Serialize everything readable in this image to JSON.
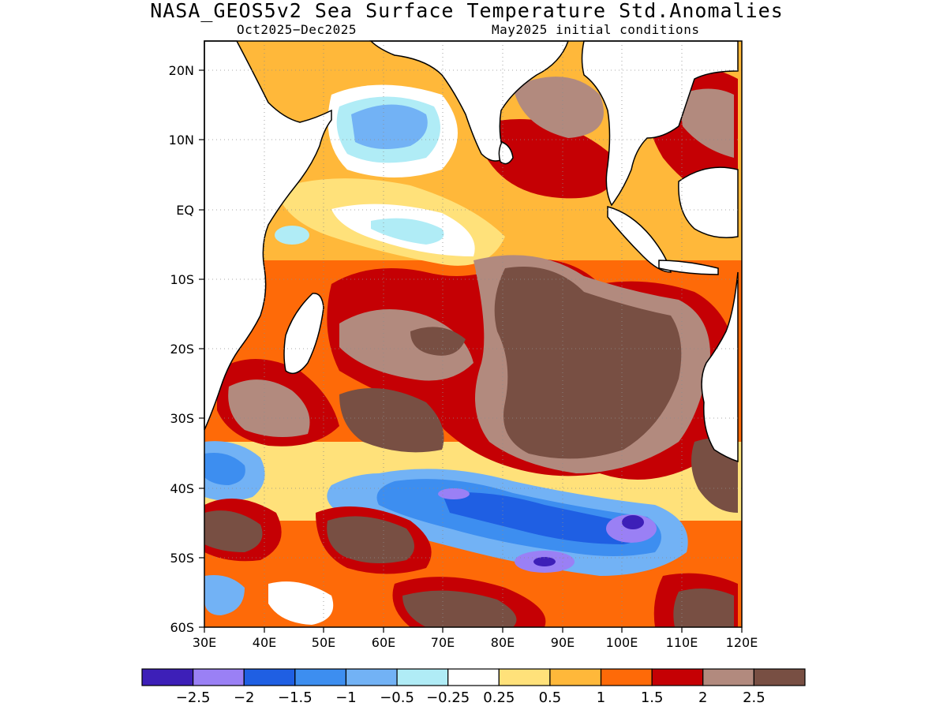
{
  "title": "NASA_GEOS5v2 Sea Surface Temperature Std.Anomalies",
  "subtitle_left": "Oct2025−Dec2025",
  "subtitle_right": "May2025 initial conditions",
  "map": {
    "lon_range": [
      30,
      120
    ],
    "lat_range": [
      -60,
      24
    ],
    "lon_ticks": [
      "30E",
      "40E",
      "50E",
      "60E",
      "70E",
      "80E",
      "90E",
      "100E",
      "110E",
      "120E"
    ],
    "lat_ticks": [
      "20N",
      "10N",
      "EQ",
      "10S",
      "20S",
      "30S",
      "40S",
      "50S",
      "60S"
    ],
    "grid": "dotted"
  },
  "colorbar": {
    "colors": [
      "#3d1fb8",
      "#9a80f5",
      "#1f5fe3",
      "#3d8ef0",
      "#72b2f5",
      "#b0ecf6",
      "#ffffff",
      "#ffe17a",
      "#ffb83a",
      "#fe6a08",
      "#c50004",
      "#b28a7e",
      "#784f43"
    ],
    "labels": [
      "−2.5",
      "−2",
      "−1.5",
      "−1",
      "−0.5",
      "−0.25",
      "0.25",
      "0.5",
      "1",
      "1.5",
      "2",
      "2.5"
    ]
  }
}
